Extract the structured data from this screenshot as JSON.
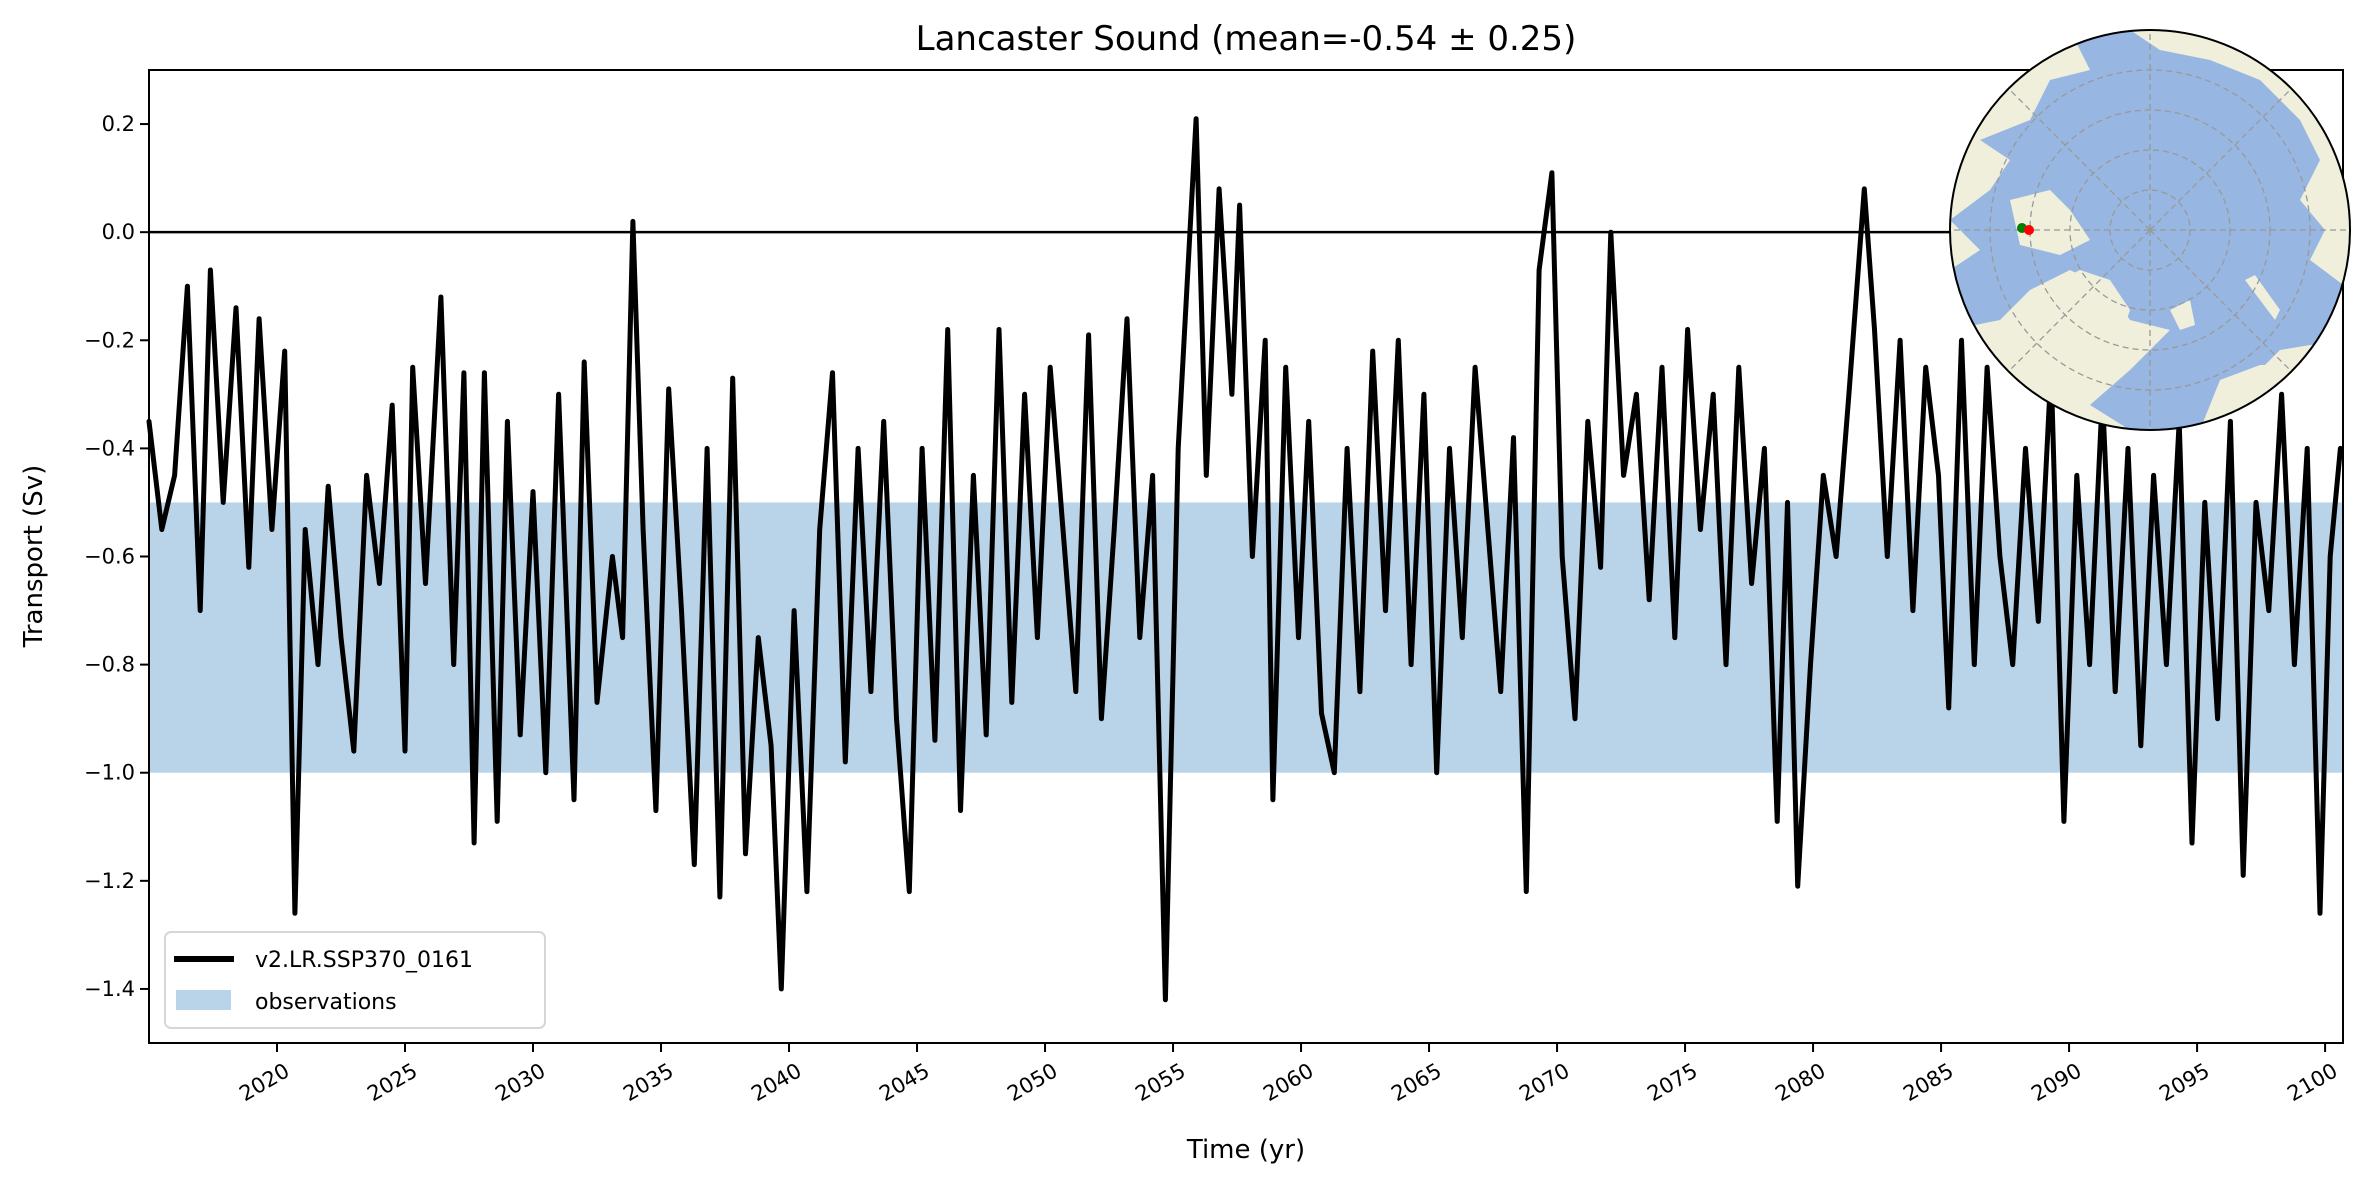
{
  "chart_data": {
    "type": "line",
    "title": "Lancaster Sound (mean=-0.54 ± 0.25)",
    "xlabel": "Time (yr)",
    "ylabel": "Transport (Sv)",
    "xlim": [
      2015.0,
      2100.7
    ],
    "ylim": [
      -1.5,
      0.3
    ],
    "xticks": [
      2020,
      2025,
      2030,
      2035,
      2040,
      2045,
      2050,
      2055,
      2060,
      2065,
      2070,
      2075,
      2080,
      2085,
      2090,
      2095,
      2100
    ],
    "xtick_labels": [
      "2020",
      "2025",
      "2030",
      "2035",
      "2040",
      "2045",
      "2050",
      "2055",
      "2060",
      "2065",
      "2070",
      "2075",
      "2080",
      "2085",
      "2090",
      "2095",
      "2100"
    ],
    "yticks": [
      0.2,
      0.0,
      -0.2,
      -0.4,
      -0.6,
      -0.8,
      -1.0,
      -1.2,
      -1.4
    ],
    "ytick_labels": [
      "0.2",
      "0.0",
      "−0.2",
      "−0.4",
      "−0.6",
      "−0.8",
      "−1.0",
      "−1.2",
      "−1.4"
    ],
    "grid": false,
    "zero_line": 0.0,
    "legend_placement": "lower-left",
    "observations": {
      "name": "observations",
      "range": [
        -1.0,
        -0.5
      ],
      "color": "#b9d4e8"
    },
    "series": [
      {
        "name": "v2.LR.SSP370_0161",
        "color": "#000000",
        "points": [
          [
            2015.0,
            -0.35
          ],
          [
            2015.5,
            -0.55
          ],
          [
            2016.0,
            -0.45
          ],
          [
            2016.5,
            -0.1
          ],
          [
            2017.0,
            -0.7
          ],
          [
            2017.4,
            -0.07
          ],
          [
            2017.9,
            -0.5
          ],
          [
            2018.4,
            -0.14
          ],
          [
            2018.9,
            -0.62
          ],
          [
            2019.3,
            -0.16
          ],
          [
            2019.8,
            -0.55
          ],
          [
            2020.3,
            -0.22
          ],
          [
            2020.7,
            -1.26
          ],
          [
            2021.1,
            -0.55
          ],
          [
            2021.6,
            -0.8
          ],
          [
            2022.0,
            -0.47
          ],
          [
            2022.5,
            -0.75
          ],
          [
            2023.0,
            -0.96
          ],
          [
            2023.5,
            -0.45
          ],
          [
            2024.0,
            -0.65
          ],
          [
            2024.5,
            -0.32
          ],
          [
            2025.0,
            -0.96
          ],
          [
            2025.3,
            -0.25
          ],
          [
            2025.8,
            -0.65
          ],
          [
            2026.4,
            -0.12
          ],
          [
            2026.9,
            -0.8
          ],
          [
            2027.3,
            -0.26
          ],
          [
            2027.7,
            -1.13
          ],
          [
            2028.1,
            -0.26
          ],
          [
            2028.6,
            -1.09
          ],
          [
            2029.0,
            -0.35
          ],
          [
            2029.5,
            -0.93
          ],
          [
            2030.0,
            -0.48
          ],
          [
            2030.5,
            -1.0
          ],
          [
            2031.0,
            -0.3
          ],
          [
            2031.6,
            -1.05
          ],
          [
            2032.0,
            -0.24
          ],
          [
            2032.5,
            -0.87
          ],
          [
            2033.1,
            -0.6
          ],
          [
            2033.5,
            -0.75
          ],
          [
            2033.9,
            0.02
          ],
          [
            2034.3,
            -0.55
          ],
          [
            2034.8,
            -1.07
          ],
          [
            2035.3,
            -0.29
          ],
          [
            2035.8,
            -0.7
          ],
          [
            2036.3,
            -1.17
          ],
          [
            2036.8,
            -0.4
          ],
          [
            2037.3,
            -1.23
          ],
          [
            2037.8,
            -0.27
          ],
          [
            2038.3,
            -1.15
          ],
          [
            2038.8,
            -0.75
          ],
          [
            2039.3,
            -0.95
          ],
          [
            2039.7,
            -1.4
          ],
          [
            2040.2,
            -0.7
          ],
          [
            2040.7,
            -1.22
          ],
          [
            2041.2,
            -0.55
          ],
          [
            2041.7,
            -0.26
          ],
          [
            2042.2,
            -0.98
          ],
          [
            2042.7,
            -0.4
          ],
          [
            2043.2,
            -0.85
          ],
          [
            2043.7,
            -0.35
          ],
          [
            2044.2,
            -0.9
          ],
          [
            2044.7,
            -1.22
          ],
          [
            2045.2,
            -0.4
          ],
          [
            2045.7,
            -0.94
          ],
          [
            2046.2,
            -0.18
          ],
          [
            2046.7,
            -1.07
          ],
          [
            2047.2,
            -0.45
          ],
          [
            2047.7,
            -0.93
          ],
          [
            2048.2,
            -0.18
          ],
          [
            2048.7,
            -0.87
          ],
          [
            2049.2,
            -0.3
          ],
          [
            2049.7,
            -0.75
          ],
          [
            2050.2,
            -0.25
          ],
          [
            2050.7,
            -0.55
          ],
          [
            2051.2,
            -0.85
          ],
          [
            2051.7,
            -0.19
          ],
          [
            2052.2,
            -0.9
          ],
          [
            2052.7,
            -0.55
          ],
          [
            2053.2,
            -0.16
          ],
          [
            2053.7,
            -0.75
          ],
          [
            2054.2,
            -0.45
          ],
          [
            2054.7,
            -1.42
          ],
          [
            2055.2,
            -0.4
          ],
          [
            2055.9,
            0.21
          ],
          [
            2056.3,
            -0.45
          ],
          [
            2056.8,
            0.08
          ],
          [
            2057.3,
            -0.3
          ],
          [
            2057.6,
            0.05
          ],
          [
            2058.1,
            -0.6
          ],
          [
            2058.6,
            -0.2
          ],
          [
            2058.9,
            -1.05
          ],
          [
            2059.4,
            -0.25
          ],
          [
            2059.9,
            -0.75
          ],
          [
            2060.3,
            -0.35
          ],
          [
            2060.8,
            -0.89
          ],
          [
            2061.3,
            -1.0
          ],
          [
            2061.8,
            -0.4
          ],
          [
            2062.3,
            -0.85
          ],
          [
            2062.8,
            -0.22
          ],
          [
            2063.3,
            -0.7
          ],
          [
            2063.8,
            -0.2
          ],
          [
            2064.3,
            -0.8
          ],
          [
            2064.8,
            -0.3
          ],
          [
            2065.3,
            -1.0
          ],
          [
            2065.8,
            -0.4
          ],
          [
            2066.3,
            -0.75
          ],
          [
            2066.8,
            -0.25
          ],
          [
            2067.3,
            -0.55
          ],
          [
            2067.8,
            -0.85
          ],
          [
            2068.3,
            -0.38
          ],
          [
            2068.8,
            -1.22
          ],
          [
            2069.3,
            -0.07
          ],
          [
            2069.8,
            0.11
          ],
          [
            2070.2,
            -0.6
          ],
          [
            2070.7,
            -0.9
          ],
          [
            2071.2,
            -0.35
          ],
          [
            2071.7,
            -0.62
          ],
          [
            2072.1,
            0.0
          ],
          [
            2072.6,
            -0.45
          ],
          [
            2073.1,
            -0.3
          ],
          [
            2073.6,
            -0.68
          ],
          [
            2074.1,
            -0.25
          ],
          [
            2074.6,
            -0.75
          ],
          [
            2075.1,
            -0.18
          ],
          [
            2075.6,
            -0.55
          ],
          [
            2076.1,
            -0.3
          ],
          [
            2076.6,
            -0.8
          ],
          [
            2077.1,
            -0.25
          ],
          [
            2077.6,
            -0.65
          ],
          [
            2078.1,
            -0.4
          ],
          [
            2078.6,
            -1.09
          ],
          [
            2079.0,
            -0.5
          ],
          [
            2079.4,
            -1.21
          ],
          [
            2079.9,
            -0.8
          ],
          [
            2080.4,
            -0.45
          ],
          [
            2080.9,
            -0.6
          ],
          [
            2081.4,
            -0.3
          ],
          [
            2082.0,
            0.08
          ],
          [
            2082.4,
            -0.18
          ],
          [
            2082.9,
            -0.6
          ],
          [
            2083.4,
            -0.2
          ],
          [
            2083.9,
            -0.7
          ],
          [
            2084.4,
            -0.25
          ],
          [
            2084.9,
            -0.45
          ],
          [
            2085.3,
            -0.88
          ],
          [
            2085.8,
            -0.2
          ],
          [
            2086.3,
            -0.8
          ],
          [
            2086.8,
            -0.25
          ],
          [
            2087.3,
            -0.6
          ],
          [
            2087.8,
            -0.8
          ],
          [
            2088.3,
            -0.4
          ],
          [
            2088.8,
            -0.72
          ],
          [
            2089.3,
            -0.25
          ],
          [
            2089.8,
            -1.09
          ],
          [
            2090.3,
            -0.45
          ],
          [
            2090.8,
            -0.8
          ],
          [
            2091.3,
            -0.3
          ],
          [
            2091.8,
            -0.85
          ],
          [
            2092.3,
            -0.4
          ],
          [
            2092.8,
            -0.95
          ],
          [
            2093.3,
            -0.45
          ],
          [
            2093.8,
            -0.8
          ],
          [
            2094.3,
            -0.35
          ],
          [
            2094.8,
            -1.13
          ],
          [
            2095.3,
            -0.5
          ],
          [
            2095.8,
            -0.9
          ],
          [
            2096.3,
            -0.35
          ],
          [
            2096.8,
            -1.19
          ],
          [
            2097.3,
            -0.5
          ],
          [
            2097.8,
            -0.7
          ],
          [
            2098.3,
            -0.3
          ],
          [
            2098.8,
            -0.8
          ],
          [
            2099.3,
            -0.4
          ],
          [
            2099.8,
            -1.26
          ],
          [
            2100.2,
            -0.6
          ],
          [
            2100.6,
            -0.4
          ]
        ]
      }
    ],
    "inset_map": {
      "projection": "north-polar-stereographic",
      "land_color": "#efefdb",
      "ocean_color": "#97b6e1",
      "markers": [
        {
          "color": "#008000"
        },
        {
          "color": "#ff0000"
        }
      ]
    }
  }
}
